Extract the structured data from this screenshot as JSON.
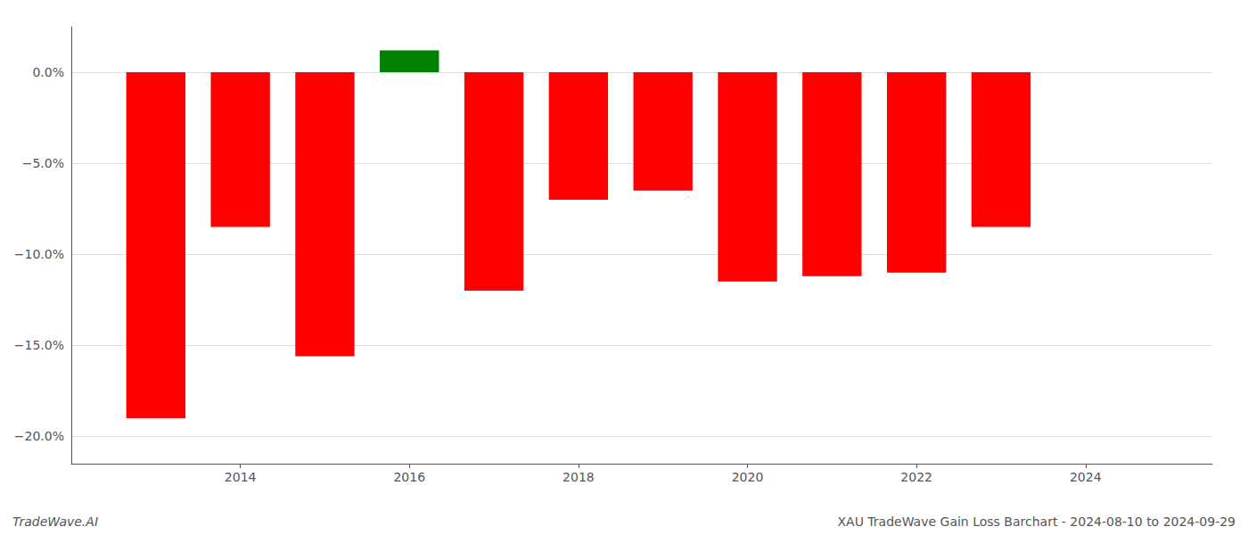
{
  "chart_data": {
    "type": "bar",
    "x": [
      2013,
      2014,
      2015,
      2016,
      2017,
      2018,
      2019,
      2020,
      2021,
      2022,
      2023
    ],
    "values": [
      -19.0,
      -8.5,
      -15.6,
      1.2,
      -12.0,
      -7.0,
      -6.5,
      -11.5,
      -11.2,
      -11.0,
      -8.5
    ],
    "colors": [
      "#ff0000",
      "#ff0000",
      "#ff0000",
      "#008000",
      "#ff0000",
      "#ff0000",
      "#ff0000",
      "#ff0000",
      "#ff0000",
      "#ff0000",
      "#ff0000"
    ],
    "xlim": [
      2012.0,
      2025.5
    ],
    "xticks": [
      2014,
      2016,
      2018,
      2020,
      2022,
      2024
    ],
    "ylim": [
      -21.5,
      2.5
    ],
    "yticks": [
      {
        "value": 0.0,
        "label": "0.0%"
      },
      {
        "value": -5.0,
        "label": "−5.0%"
      },
      {
        "value": -10.0,
        "label": "−10.0%"
      },
      {
        "value": -15.0,
        "label": "−15.0%"
      },
      {
        "value": -20.0,
        "label": "−20.0%"
      }
    ],
    "grid": true,
    "annotations": [
      "TradeWave.AI",
      "XAU TradeWave Gain Loss Barchart - 2024-08-10 to 2024-09-29"
    ]
  }
}
